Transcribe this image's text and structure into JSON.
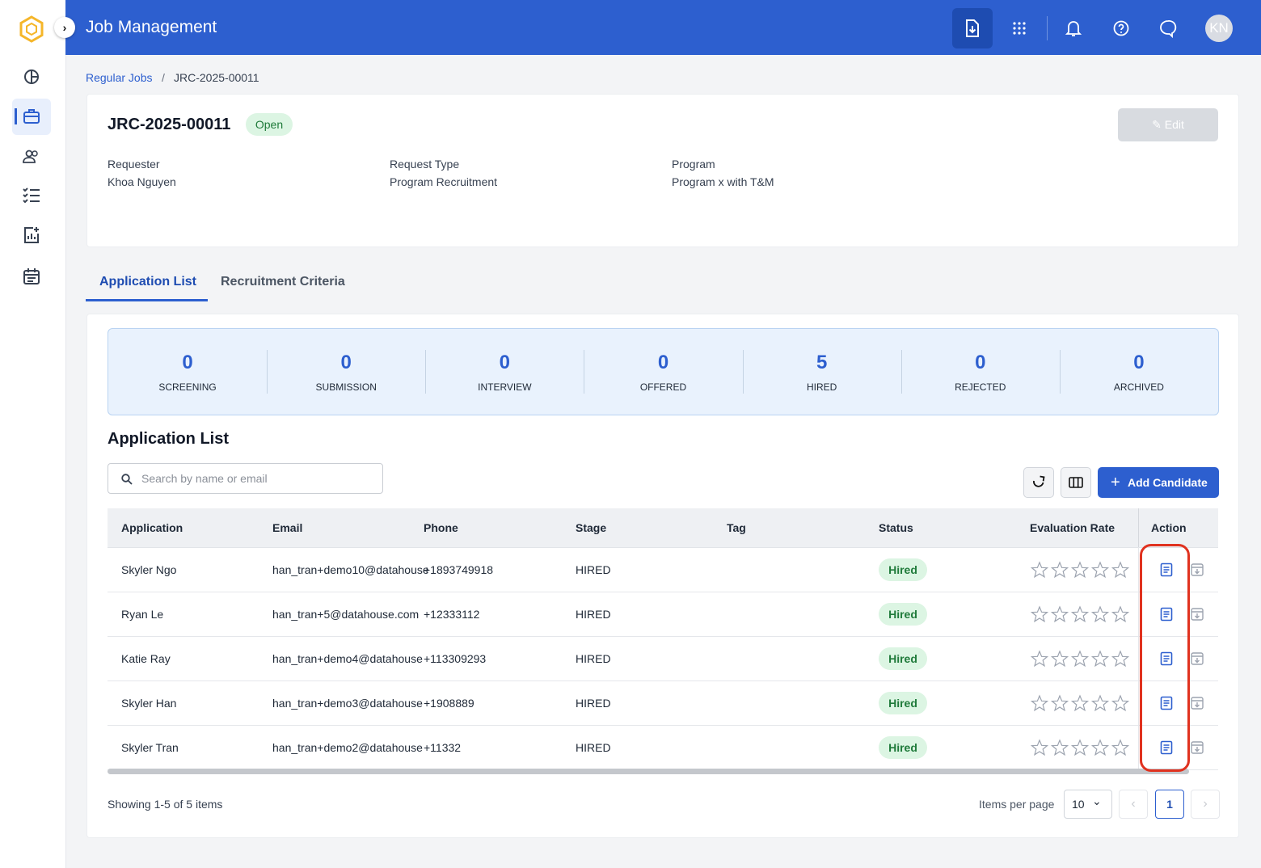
{
  "header": {
    "title": "Job Management",
    "avatar": "KN"
  },
  "breadcrumb": [
    "Regular Jobs",
    "JRC-2025-00011"
  ],
  "job": {
    "id": "JRC-2025-00011",
    "status": "Open",
    "edit": "Edit",
    "fields": [
      {
        "label": "Requester",
        "value": "Khoa Nguyen"
      },
      {
        "label": "Request Type",
        "value": "Program Recruitment"
      },
      {
        "label": "Program",
        "value": "Program x with T&M"
      }
    ]
  },
  "tabs": [
    "Application List",
    "Recruitment Criteria"
  ],
  "stages": [
    {
      "count": 0,
      "label": "SCREENING"
    },
    {
      "count": 0,
      "label": "SUBMISSION"
    },
    {
      "count": 0,
      "label": "INTERVIEW"
    },
    {
      "count": 0,
      "label": "OFFERED"
    },
    {
      "count": 5,
      "label": "HIRED"
    },
    {
      "count": 0,
      "label": "REJECTED"
    },
    {
      "count": 0,
      "label": "ARCHIVED"
    }
  ],
  "list": {
    "title": "Application List",
    "search_placeholder": "Search by name or email",
    "add_button": "Add Candidate",
    "columns": [
      "Application",
      "Email",
      "Phone",
      "Stage",
      "Tag",
      "Status",
      "Evaluation Rate",
      "Action"
    ],
    "rows": [
      {
        "application": "Skyler Ngo",
        "email": "han_tran+demo10@datahouse",
        "phone": "+1893749918",
        "stage": "HIRED",
        "status": "Hired"
      },
      {
        "application": "Ryan Le",
        "email": "han_tran+5@datahouse.com",
        "phone": "+12333112",
        "stage": "HIRED",
        "status": "Hired"
      },
      {
        "application": "Katie Ray",
        "email": "han_tran+demo4@datahouse",
        "phone": "+113309293",
        "stage": "HIRED",
        "status": "Hired"
      },
      {
        "application": "Skyler Han",
        "email": "han_tran+demo3@datahouse",
        "phone": "+1908889",
        "stage": "HIRED",
        "status": "Hired"
      },
      {
        "application": "Skyler Tran",
        "email": "han_tran+demo2@datahouse",
        "phone": "+11332",
        "stage": "HIRED",
        "status": "Hired"
      }
    ]
  },
  "footer": {
    "summary": "Showing 1-5 of 5 items",
    "items_per_page_label": "Items per page",
    "page_size": 10,
    "page": 1
  }
}
